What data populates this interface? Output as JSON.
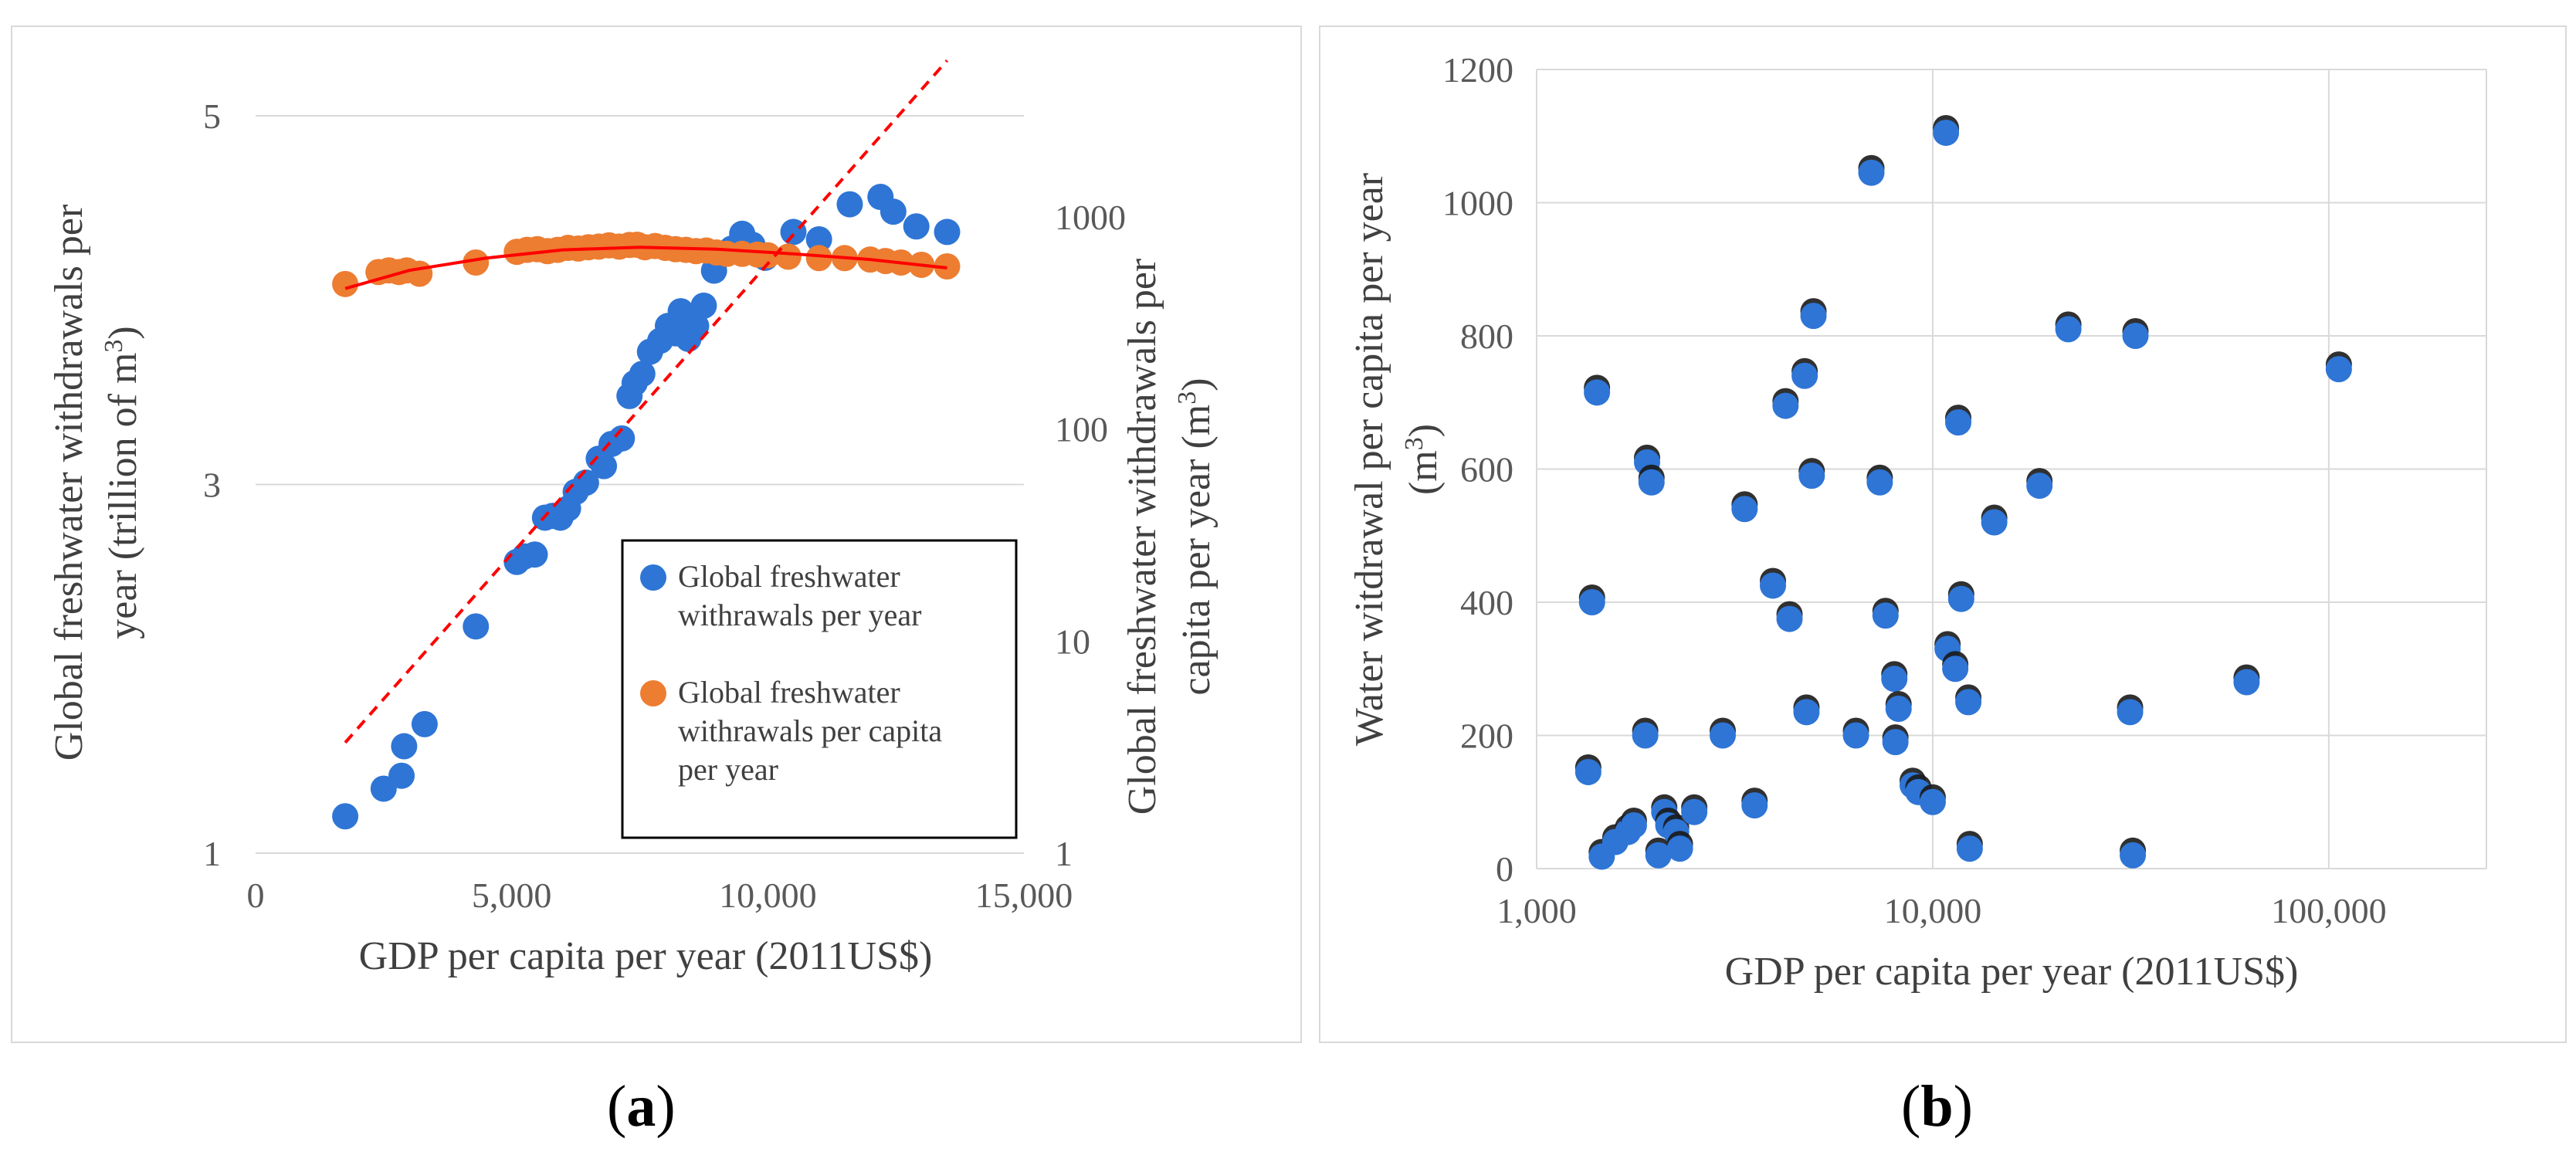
{
  "panels": {
    "a_label_open": "(",
    "a_label_letter": "a",
    "a_label_close": ")",
    "b_label_open": "(",
    "b_label_letter": "b",
    "b_label_close": ")"
  },
  "chart_data": [
    {
      "type": "scatter",
      "panel": "a",
      "xlabel": "GDP per capita per year (2011US$)",
      "ylabel_left_line1": "Global freshwater withdrawals per",
      "ylabel_left_line2": "year (trillion of m",
      "ylabel_left_sup": "3",
      "ylabel_left_close": ")",
      "ylabel_right_line1": "Global freshwater withdrawals per",
      "ylabel_right_line2": "capita per year (m",
      "ylabel_right_sup": "3",
      "ylabel_right_close": ")",
      "xlim": [
        0,
        15000
      ],
      "ylim_left": [
        1,
        5
      ],
      "ylim_right_log": [
        1,
        3000
      ],
      "x_ticks": [
        0,
        5000,
        10000,
        15000
      ],
      "x_tick_labels": [
        "0",
        "5,000",
        "10,000",
        "15,000"
      ],
      "y_left_ticks": [
        1,
        3,
        5
      ],
      "y_left_tick_labels": [
        "1",
        "3",
        "5"
      ],
      "y_right_ticks": [
        1,
        10,
        100,
        1000
      ],
      "y_right_tick_labels": [
        "1",
        "10",
        "100",
        "1000"
      ],
      "legend": [
        {
          "line1": "Global freshwater",
          "line2": "withrawals per year",
          "line3": "",
          "color": "#2e75d6"
        },
        {
          "line1": "Global freshwater",
          "line2": "withrawals per capita",
          "line3": "per year",
          "color": "#ed7d31"
        }
      ],
      "series": [
        {
          "name": "Global freshwater withrawals per year",
          "axis": "left",
          "color": "#2e75d6",
          "points": [
            [
              1750,
              1.2
            ],
            [
              2500,
              1.35
            ],
            [
              2850,
              1.42
            ],
            [
              2900,
              1.58
            ],
            [
              3300,
              1.7
            ],
            [
              4300,
              2.23
            ],
            [
              5100,
              2.58
            ],
            [
              5250,
              2.61
            ],
            [
              5450,
              2.62
            ],
            [
              5650,
              2.82
            ],
            [
              5800,
              2.83
            ],
            [
              5950,
              2.82
            ],
            [
              6100,
              2.87
            ],
            [
              6250,
              2.96
            ],
            [
              6450,
              3.01
            ],
            [
              6700,
              3.14
            ],
            [
              6800,
              3.1
            ],
            [
              6950,
              3.22
            ],
            [
              7150,
              3.25
            ],
            [
              7300,
              3.48
            ],
            [
              7400,
              3.55
            ],
            [
              7550,
              3.6
            ],
            [
              7700,
              3.72
            ],
            [
              7900,
              3.78
            ],
            [
              8050,
              3.86
            ],
            [
              8200,
              3.82
            ],
            [
              8300,
              3.94
            ],
            [
              8450,
              3.79
            ],
            [
              8600,
              3.86
            ],
            [
              8750,
              3.97
            ],
            [
              8950,
              4.16
            ],
            [
              9300,
              4.28
            ],
            [
              9500,
              4.36
            ],
            [
              9700,
              4.3
            ],
            [
              9950,
              4.23
            ],
            [
              10500,
              4.37
            ],
            [
              11000,
              4.33
            ],
            [
              11600,
              4.52
            ],
            [
              12200,
              4.56
            ],
            [
              12450,
              4.48
            ],
            [
              12900,
              4.4
            ],
            [
              13500,
              4.37
            ]
          ]
        },
        {
          "name": "Global freshwater withrawals per capita per year",
          "axis": "right",
          "color": "#ed7d31",
          "points": [
            [
              1750,
              483
            ],
            [
              2400,
              550
            ],
            [
              2600,
              560
            ],
            [
              2800,
              550
            ],
            [
              2950,
              560
            ],
            [
              3200,
              540
            ],
            [
              4300,
              610
            ],
            [
              5100,
              685
            ],
            [
              5300,
              700
            ],
            [
              5500,
              705
            ],
            [
              5700,
              690
            ],
            [
              5900,
              700
            ],
            [
              6100,
              715
            ],
            [
              6300,
              710
            ],
            [
              6500,
              720
            ],
            [
              6700,
              725
            ],
            [
              6900,
              735
            ],
            [
              7100,
              725
            ],
            [
              7300,
              738
            ],
            [
              7450,
              740
            ],
            [
              7600,
              720
            ],
            [
              7800,
              730
            ],
            [
              8000,
              715
            ],
            [
              8200,
              705
            ],
            [
              8400,
              700
            ],
            [
              8600,
              690
            ],
            [
              8800,
              695
            ],
            [
              9000,
              680
            ],
            [
              9200,
              670
            ],
            [
              9500,
              670
            ],
            [
              9800,
              665
            ],
            [
              10000,
              660
            ],
            [
              10400,
              650
            ],
            [
              11000,
              640
            ],
            [
              11500,
              640
            ],
            [
              12000,
              630
            ],
            [
              12300,
              620
            ],
            [
              12600,
              610
            ],
            [
              13000,
              595
            ],
            [
              13500,
              585
            ]
          ]
        }
      ],
      "trend_lines": [
        {
          "name": "linear trend (left axis)",
          "style": "dashed",
          "color": "#ff0000",
          "x": [
            1750,
            13500
          ],
          "y": [
            1.6,
            5.3
          ]
        },
        {
          "name": "polynomial trend (right axis)",
          "style": "solid",
          "color": "#ff0000",
          "x": [
            1750,
            3000,
            4500,
            6000,
            7500,
            9000,
            10500,
            12000,
            13500
          ],
          "y": [
            460,
            560,
            640,
            700,
            720,
            705,
            670,
            630,
            575
          ]
        }
      ]
    },
    {
      "type": "scatter",
      "panel": "b",
      "xscale": "log",
      "xlabel": "GDP per capita per year (2011US$)",
      "ylabel_line1": "Water witdrawal per capita per year",
      "ylabel_line2": "(m",
      "ylabel_sup": "3",
      "ylabel_close": ")",
      "xlim": [
        1000,
        250000
      ],
      "ylim": [
        0,
        1200
      ],
      "x_ticks": [
        1000,
        10000,
        100000
      ],
      "x_tick_labels": [
        "1,000",
        "10,000",
        "100,000"
      ],
      "y_ticks": [
        0,
        200,
        400,
        600,
        800,
        1000,
        1200
      ],
      "y_tick_labels": [
        "0",
        "200",
        "400",
        "600",
        "800",
        "1000",
        "1200"
      ],
      "series": [
        {
          "name": "Water witdrawal per capita per year",
          "color": "#2e75d6",
          "points": [
            [
              1350,
              145
            ],
            [
              1380,
              400
            ],
            [
              1420,
              715
            ],
            [
              1460,
              18
            ],
            [
              1580,
              40
            ],
            [
              1700,
              55
            ],
            [
              1760,
              65
            ],
            [
              1880,
              200
            ],
            [
              1900,
              610
            ],
            [
              1950,
              580
            ],
            [
              2030,
              20
            ],
            [
              2100,
              85
            ],
            [
              2150,
              65
            ],
            [
              2250,
              55
            ],
            [
              2300,
              30
            ],
            [
              2500,
              85
            ],
            [
              2950,
              200
            ],
            [
              3350,
              540
            ],
            [
              3550,
              95
            ],
            [
              3950,
              425
            ],
            [
              4250,
              695
            ],
            [
              4350,
              375
            ],
            [
              4750,
              740
            ],
            [
              4800,
              235
            ],
            [
              4950,
              590
            ],
            [
              5000,
              830
            ],
            [
              6400,
              200
            ],
            [
              7000,
              1045
            ],
            [
              7350,
              580
            ],
            [
              7600,
              380
            ],
            [
              8000,
              285
            ],
            [
              8050,
              190
            ],
            [
              8200,
              240
            ],
            [
              8900,
              125
            ],
            [
              9200,
              115
            ],
            [
              10000,
              100
            ],
            [
              10800,
              1105
            ],
            [
              10900,
              330
            ],
            [
              11400,
              300
            ],
            [
              11600,
              670
            ],
            [
              11800,
              405
            ],
            [
              12300,
              250
            ],
            [
              12400,
              30
            ],
            [
              14300,
              520
            ],
            [
              18600,
              575
            ],
            [
              22000,
              810
            ],
            [
              31500,
              235
            ],
            [
              32000,
              20
            ],
            [
              32500,
              800
            ],
            [
              62000,
              280
            ],
            [
              106000,
              750
            ]
          ]
        }
      ]
    }
  ]
}
